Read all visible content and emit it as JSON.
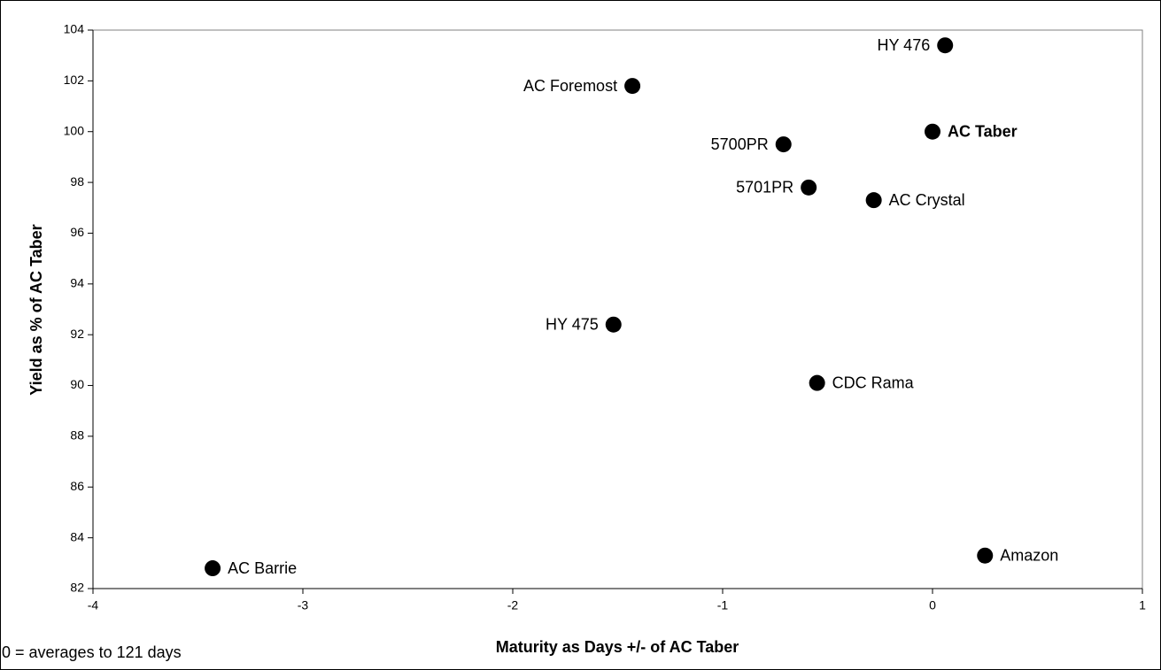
{
  "chart_data": {
    "type": "scatter",
    "x_label": "Maturity as Days +/- of AC Taber",
    "y_label": "Yield as % of AC Taber",
    "note": "0 = averages to 121 days",
    "labels": [
      "HY 476",
      "AC Foremost",
      "5700PR",
      "AC Taber",
      "5701PR",
      "AC Crystal",
      "HY 475",
      "CDC Rama",
      "AC Barrie",
      "Amazon"
    ],
    "x": [
      0.06,
      -1.43,
      -0.71,
      0,
      -0.59,
      -0.28,
      -1.52,
      -0.55,
      -3.43,
      0.25
    ],
    "values": [
      103.4,
      101.8,
      99.5,
      100,
      97.8,
      97.3,
      92.4,
      90.1,
      82.8,
      83.3
    ],
    "bold": [
      false,
      false,
      false,
      true,
      false,
      false,
      false,
      false,
      false,
      false
    ],
    "color": "#000000",
    "xlim": [
      -4,
      1
    ],
    "xticks": [
      -4,
      -3,
      -2,
      -1,
      0,
      1
    ],
    "ylim": [
      82,
      104
    ],
    "yticks": [
      82,
      84,
      86,
      88,
      90,
      92,
      94,
      96,
      98,
      100,
      102,
      104
    ]
  }
}
